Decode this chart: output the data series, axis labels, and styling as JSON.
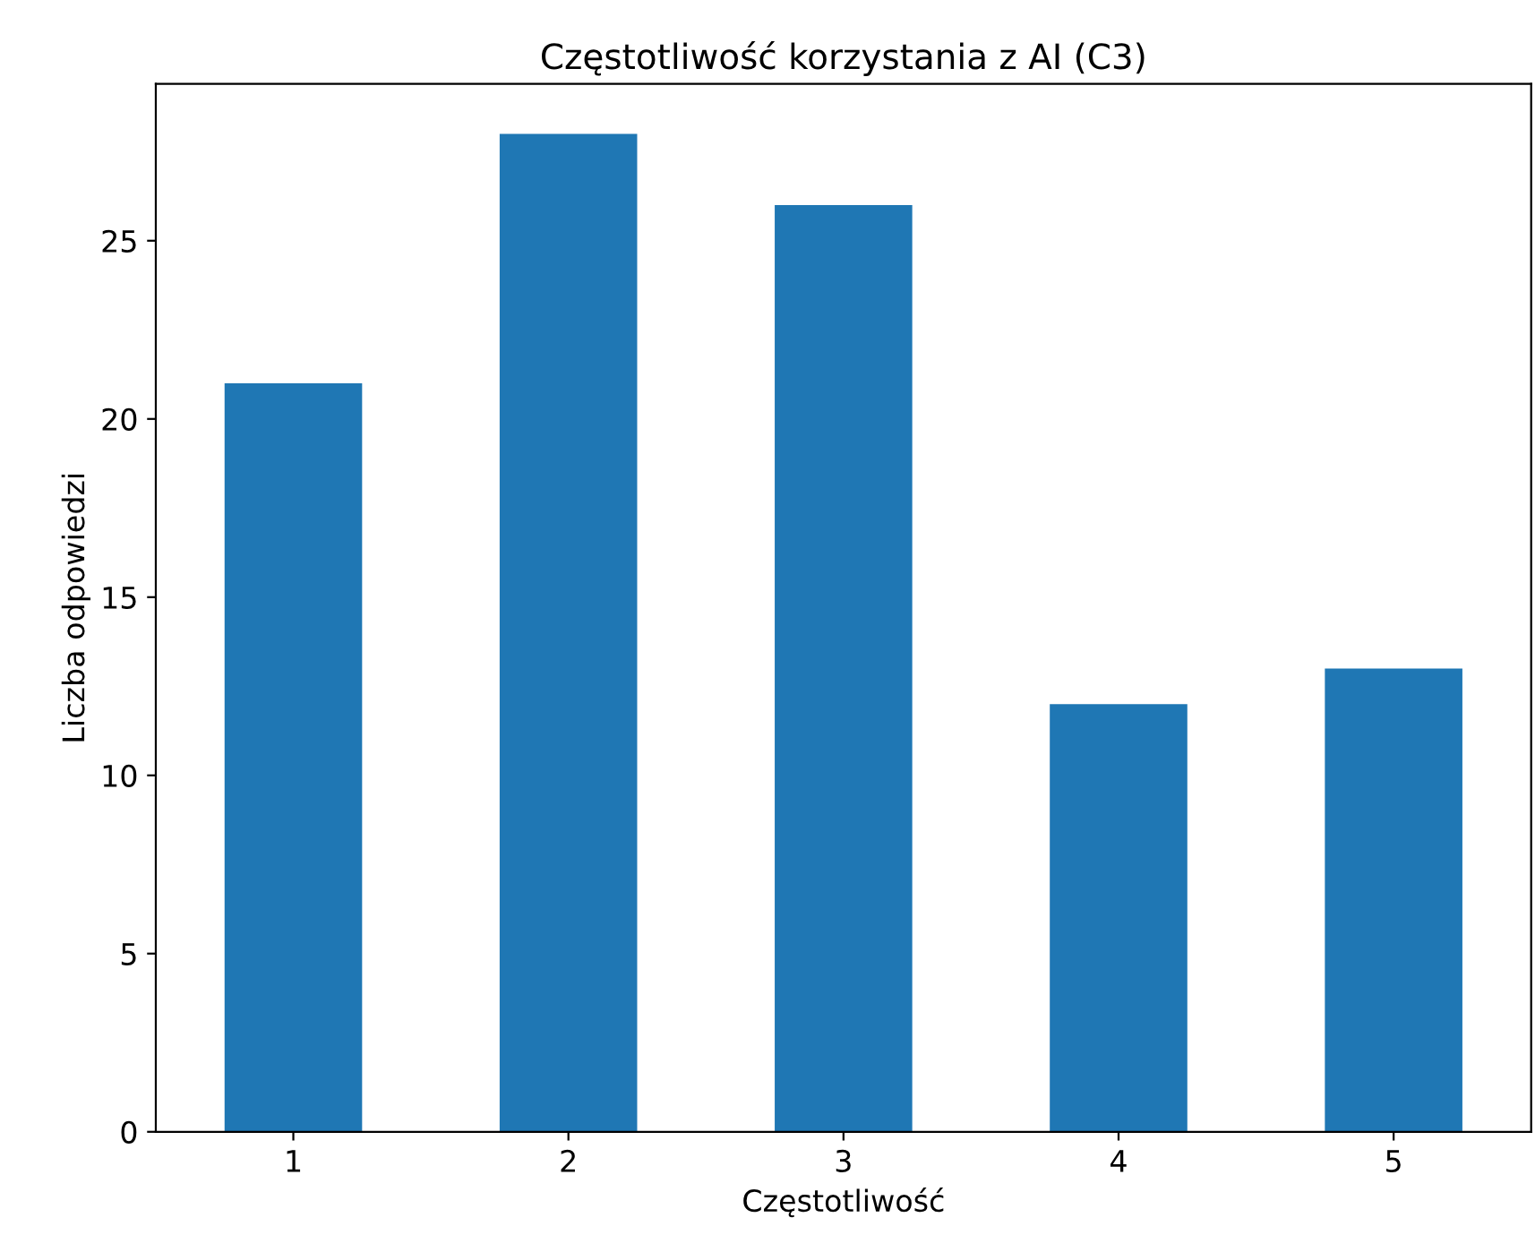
{
  "chart_data": {
    "type": "bar",
    "title": "Częstotliwość korzystania z AI (C3)",
    "xlabel": "Częstotliwość",
    "ylabel": "Liczba odpowiedzi",
    "categories": [
      "1",
      "2",
      "3",
      "4",
      "5"
    ],
    "values": [
      21,
      28,
      26,
      12,
      13
    ],
    "color": "#1f77b4",
    "ylim": [
      0,
      29.4
    ],
    "yticks": [
      0,
      5,
      10,
      15,
      20,
      25
    ],
    "grid": false
  }
}
